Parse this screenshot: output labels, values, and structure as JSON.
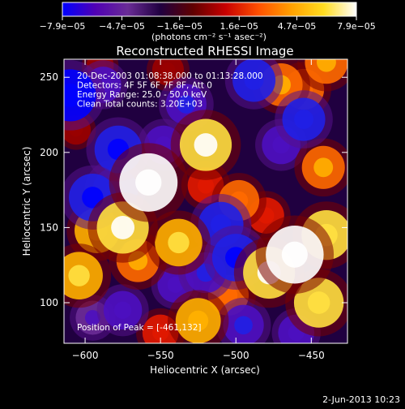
{
  "chart_data": {
    "type": "heatmap",
    "title": "Reconstructed RHESSI Image",
    "xlabel": "Heliocentric X (arcsec)",
    "ylabel": "Heliocentric Y (arcsec)",
    "xlim": [
      -614,
      -426
    ],
    "ylim": [
      73,
      262
    ],
    "xticks": [
      -600,
      -550,
      -500,
      -450
    ],
    "yticks": [
      100,
      150,
      200,
      250
    ],
    "xtick_labels": [
      "−600",
      "−550",
      "−500",
      "−450"
    ],
    "ytick_labels": [
      "100",
      "150",
      "200",
      "250"
    ],
    "colorbar": {
      "ticks": [
        -7.9e-05,
        -4.7e-05,
        -1.6e-05,
        1.6e-05,
        4.7e-05,
        7.9e-05
      ],
      "tick_labels": [
        "−7.9e−05",
        "−4.7e−05",
        "−1.6e−05",
        "1.6e−05",
        "4.7e−05",
        "7.9e−05"
      ],
      "range": [
        -7.9e-05,
        7.9e-05
      ],
      "unit_label": "(photons cm⁻² s⁻¹ asec⁻²)",
      "colors": [
        "#0000ff",
        "#5000b4",
        "#6a2c96",
        "#200040",
        "#600000",
        "#c80000",
        "#ff5000",
        "#ffa000",
        "#ffdc20",
        "#ffffff"
      ]
    },
    "annotations": [
      "20-Dec-2003 01:08:38.000 to 01:13:28.000",
      "Detectors: 4F 5F 6F 7F 8F, Att 0",
      "Energy Range: 25.0 - 50.0 keV",
      "Clean    Total counts: 3.20E+03",
      "Position of Peak = [-461,132]"
    ],
    "blobs": [
      {
        "x": -558,
        "y": 180,
        "value": 7.9e-05
      },
      {
        "x": -575,
        "y": 150,
        "value": 6.5e-05
      },
      {
        "x": -592,
        "y": 148,
        "value": 5e-05
      },
      {
        "x": -538,
        "y": 140,
        "value": 5.5e-05
      },
      {
        "x": -604,
        "y": 118,
        "value": 5.5e-05
      },
      {
        "x": -565,
        "y": 128,
        "value": 4.5e-05
      },
      {
        "x": -520,
        "y": 205,
        "value": 6.5e-05
      },
      {
        "x": -470,
        "y": 245,
        "value": 4.5e-05
      },
      {
        "x": -455,
        "y": 242,
        "value": 4e-05
      },
      {
        "x": -520,
        "y": 178,
        "value": 3e-05
      },
      {
        "x": -498,
        "y": 168,
        "value": 4e-05
      },
      {
        "x": -442,
        "y": 190,
        "value": 4.5e-05
      },
      {
        "x": -480,
        "y": 158,
        "value": 3e-05
      },
      {
        "x": -461,
        "y": 132,
        "value": 7.8e-05
      },
      {
        "x": -478,
        "y": 120,
        "value": 6.5e-05
      },
      {
        "x": -440,
        "y": 145,
        "value": 6e-05
      },
      {
        "x": -445,
        "y": 100,
        "value": 6e-05
      },
      {
        "x": -505,
        "y": 105,
        "value": 4e-05
      },
      {
        "x": -525,
        "y": 88,
        "value": 5e-05
      },
      {
        "x": -550,
        "y": 80,
        "value": 3e-05
      },
      {
        "x": -440,
        "y": 260,
        "value": 4.5e-05
      },
      {
        "x": -606,
        "y": 215,
        "value": 1.5e-05
      },
      {
        "x": -590,
        "y": 258,
        "value": 1e-05
      },
      {
        "x": -545,
        "y": 255,
        "value": 2e-05
      },
      {
        "x": -610,
        "y": 238,
        "value": -6.5e-05
      },
      {
        "x": -588,
        "y": 245,
        "value": -3e-05
      },
      {
        "x": -578,
        "y": 202,
        "value": -5.5e-05
      },
      {
        "x": -595,
        "y": 170,
        "value": -5.5e-05
      },
      {
        "x": -580,
        "y": 175,
        "value": -5e-05
      },
      {
        "x": -548,
        "y": 205,
        "value": -3.5e-05
      },
      {
        "x": -533,
        "y": 232,
        "value": -4e-05
      },
      {
        "x": -488,
        "y": 248,
        "value": -4.5e-05
      },
      {
        "x": -455,
        "y": 222,
        "value": -4.5e-05
      },
      {
        "x": -470,
        "y": 205,
        "value": -3.5e-05
      },
      {
        "x": -510,
        "y": 152,
        "value": -5e-05
      },
      {
        "x": -500,
        "y": 130,
        "value": -5.5e-05
      },
      {
        "x": -520,
        "y": 120,
        "value": -4e-05
      },
      {
        "x": -495,
        "y": 85,
        "value": -4e-05
      },
      {
        "x": -575,
        "y": 95,
        "value": -3.5e-05
      },
      {
        "x": -595,
        "y": 90,
        "value": -2.5e-05
      },
      {
        "x": -460,
        "y": 80,
        "value": -3e-05
      },
      {
        "x": -540,
        "y": 112,
        "value": -3e-05
      }
    ]
  },
  "footer": {
    "timestamp": "2-Jun-2013 10:23"
  }
}
